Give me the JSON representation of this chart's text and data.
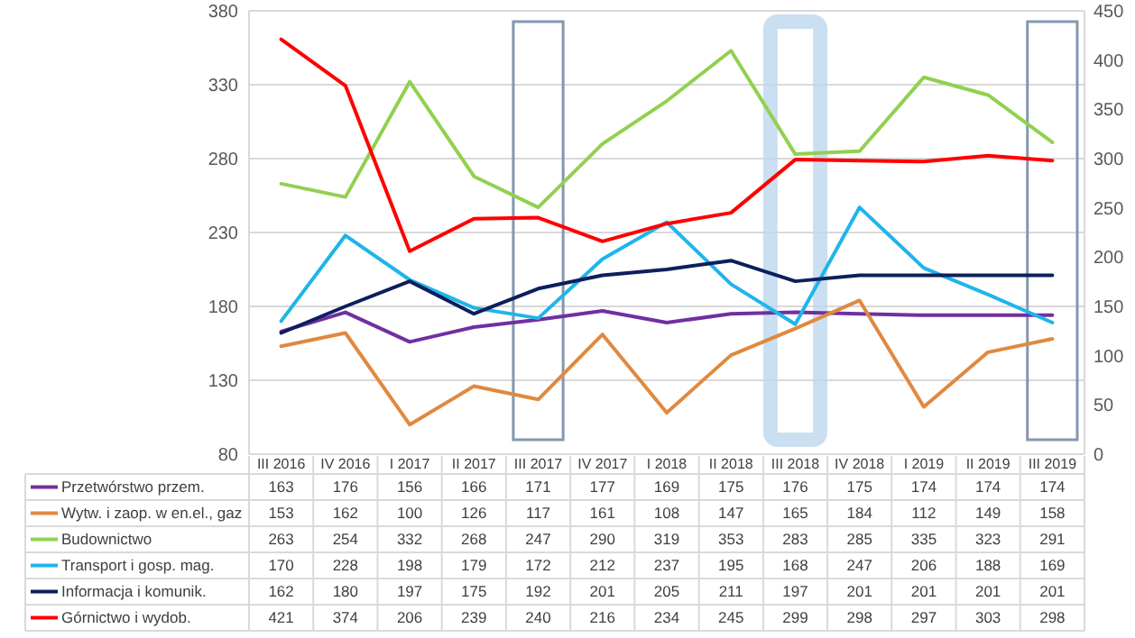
{
  "chart_data": {
    "type": "line",
    "categories": [
      "III 2016",
      "IV 2016",
      "I 2017",
      "II 2017",
      "III 2017",
      "IV 2017",
      "I 2018",
      "II 2018",
      "III 2018",
      "IV 2018",
      "I 2019",
      "II 2019",
      "III 2019"
    ],
    "series": [
      {
        "name": "Przetwórstwo przem.",
        "color": "#7030a0",
        "values": [
          163,
          176,
          156,
          166,
          171,
          177,
          169,
          175,
          176,
          175,
          174,
          174,
          174
        ]
      },
      {
        "name": "Wytw. i zaop. w en.el., gaz",
        "color": "#e0893f",
        "values": [
          153,
          162,
          100,
          126,
          117,
          161,
          108,
          147,
          165,
          184,
          112,
          149,
          158
        ]
      },
      {
        "name": "Budownictwo",
        "color": "#92d050",
        "values": [
          263,
          254,
          332,
          268,
          247,
          290,
          319,
          353,
          283,
          285,
          335,
          323,
          291
        ]
      },
      {
        "name": "Transport i gosp. mag.",
        "color": "#1fb5ea",
        "values": [
          170,
          228,
          198,
          179,
          172,
          212,
          237,
          195,
          168,
          247,
          206,
          188,
          169
        ]
      },
      {
        "name": "Informacja i komunik.",
        "color": "#0d1f5c",
        "values": [
          162,
          180,
          197,
          175,
          192,
          201,
          205,
          211,
          197,
          201,
          201,
          201,
          201
        ]
      },
      {
        "name": "Górnictwo i wydob.",
        "color": "#ff0000",
        "axis": "y2",
        "values": [
          421,
          374,
          206,
          239,
          240,
          216,
          234,
          245,
          299,
          298,
          297,
          303,
          298
        ]
      }
    ],
    "ylim": [
      80,
      380
    ],
    "yticks": [
      80,
      130,
      180,
      230,
      280,
      330,
      380
    ],
    "y2lim": [
      0,
      450
    ],
    "y2ticks": [
      0,
      50,
      100,
      150,
      200,
      250,
      300,
      350,
      400,
      450
    ],
    "grid": "y",
    "legend": "bottom",
    "data_labels": true,
    "line_style": "solid",
    "marker": "none"
  }
}
